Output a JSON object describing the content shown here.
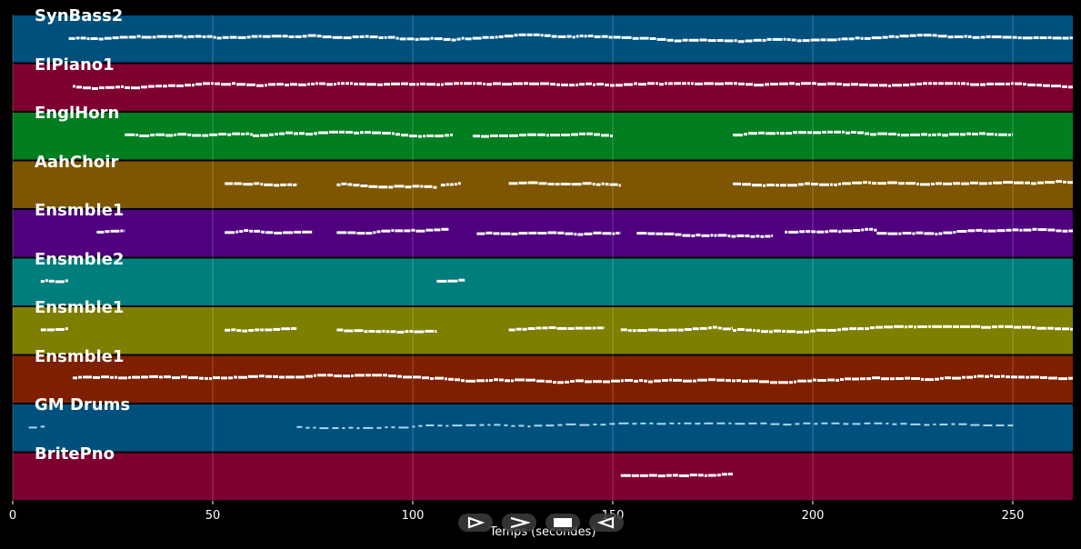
{
  "chart_data": {
    "type": "piano-roll",
    "xlabel": "Temps (secondes)",
    "xlim": [
      0,
      265
    ],
    "xticks": [
      0,
      50,
      100,
      150,
      200,
      250
    ],
    "grid": true,
    "tracks": [
      {
        "name": "SynBass2",
        "color": "#00507E",
        "segments": [
          [
            14,
            265
          ]
        ]
      },
      {
        "name": "ElPiano1",
        "color": "#7E0030",
        "segments": [
          [
            15,
            265
          ]
        ]
      },
      {
        "name": "EnglHorn",
        "color": "#007E20",
        "segments": [
          [
            28,
            60
          ],
          [
            60,
            110
          ],
          [
            115,
            150
          ],
          [
            180,
            250
          ]
        ]
      },
      {
        "name": "AahChoir",
        "color": "#7E5500",
        "segments": [
          [
            53,
            71
          ],
          [
            81,
            106
          ],
          [
            107,
            112
          ],
          [
            124,
            152
          ],
          [
            180,
            265
          ]
        ]
      },
      {
        "name": "Ensmble1",
        "color": "#50007E",
        "segments": [
          [
            21,
            28
          ],
          [
            53,
            75
          ],
          [
            81,
            109
          ],
          [
            116,
            152
          ],
          [
            156,
            190
          ],
          [
            193,
            216
          ],
          [
            216,
            265
          ]
        ]
      },
      {
        "name": "Ensmble2",
        "color": "#007E7E",
        "segments": [
          [
            7,
            14
          ],
          [
            106,
            113
          ]
        ]
      },
      {
        "name": "Ensmble1",
        "color": "#7E7E00",
        "segments": [
          [
            7,
            14
          ],
          [
            53,
            71
          ],
          [
            81,
            106
          ],
          [
            124,
            148
          ],
          [
            152,
            180
          ],
          [
            180,
            265
          ]
        ]
      },
      {
        "name": "Ensmble1",
        "color": "#7E2000",
        "segments": [
          [
            15,
            265
          ]
        ]
      },
      {
        "name": "GM Drums",
        "color": "#00507E",
        "segments": [
          [
            4,
            8
          ],
          [
            71,
            251
          ]
        ]
      },
      {
        "name": "BritePno",
        "color": "#7E0030",
        "segments": [
          [
            152,
            180
          ]
        ]
      }
    ]
  },
  "controls": [
    {
      "icon": "play-icon",
      "label": "play"
    },
    {
      "icon": "fast-forward-icon",
      "label": "forward"
    },
    {
      "icon": "stop-icon",
      "label": "stop"
    },
    {
      "icon": "rewind-icon",
      "label": "back"
    }
  ]
}
